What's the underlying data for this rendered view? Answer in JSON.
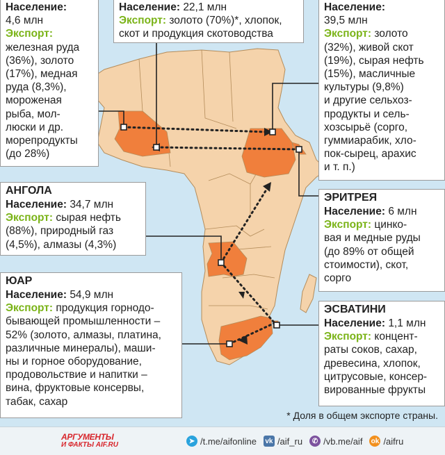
{
  "colors": {
    "ocean": "#cfe6f3",
    "land": "#f5d3ab",
    "border": "#b48c5a",
    "highlight": "#f07f3c",
    "export_label": "#7ab317",
    "route": "#222222"
  },
  "boxes": {
    "top_left": {
      "population_label": "Население:",
      "population_value": "4,6 млн",
      "export_label": "Экспорт:",
      "export_lines": [
        "железная руда",
        "(36%), золото",
        "(17%), медная",
        "руда (8,3%),",
        "мороженая",
        "рыба, мол-",
        "люски и др.",
        "морепродукты",
        "(до 28%)"
      ]
    },
    "top_center": {
      "population_label": "Население:",
      "population_value": "22,1 млн",
      "export_label": "Экспорт:",
      "export_line1": "золото (70%)*, хлопок,",
      "export_line2": "скот и продукция скотоводства"
    },
    "top_right": {
      "population_label": "Население:",
      "population_value": "39,5 млн",
      "export_label": "Экспорт:",
      "export_first": "золото",
      "export_lines": [
        "(32%), живой скот",
        "(19%), сырая нефть",
        "(15%), масличные",
        "культуры (9,8%)",
        "и другие сельхоз-",
        "продукты и сель-",
        "хозсырьё (сорго,",
        "гуммиарабик, хло-",
        "пок-сырец, арахис",
        "и т. п.)"
      ]
    },
    "angola": {
      "title": "АНГОЛА",
      "population_label": "Население:",
      "population_value": "34,7 млн",
      "export_label": "Экспорт:",
      "export_first": "сырая нефть",
      "export_lines": [
        "(88%), природный газ",
        "(4,5%), алмазы (4,3%)"
      ]
    },
    "eritrea": {
      "title": "ЭРИТРЕЯ",
      "population_label": "Население:",
      "population_value": "6 млн",
      "export_label": "Экспорт:",
      "export_first": "цинко-",
      "export_lines": [
        "вая и медные руды",
        "(до 89% от общей",
        "стоимости), скот,",
        "сорго"
      ]
    },
    "sar": {
      "title": "ЮАР",
      "population_label": "Население:",
      "population_value": "54,9 млн",
      "export_label": "Экспорт:",
      "export_first": "продукция горнодо-",
      "export_lines": [
        "бывающей промышленности –",
        "52% (золото, алмазы, платина,",
        "различные минералы), маши-",
        "ны и горное оборудование,",
        "продовольствие и напитки –",
        "вина, фруктовые консервы,",
        "табак, сахар"
      ]
    },
    "eswatini": {
      "title": "ЭСВАТИНИ",
      "population_label": "Население:",
      "population_value": "1,1 млн",
      "export_label": "Экспорт:",
      "export_first": "концент-",
      "export_lines": [
        "раты соков, сахар,",
        "древесина, хлопок,",
        "цитрусовые, консер-",
        "вированные фрукты"
      ]
    }
  },
  "footnote": "* Доля в общем экспорте страны.",
  "footer": {
    "logo_line1": "АРГУМЕНТЫ",
    "logo_line2": "И ФАКТЫ AIF.RU",
    "links": [
      {
        "icon": "telegram-icon",
        "text": "/t.me/aifonline"
      },
      {
        "icon": "vk-icon",
        "text": "/aif_ru"
      },
      {
        "icon": "viber-icon",
        "text": "/vb.me/aif"
      },
      {
        "icon": "ok-icon",
        "text": "/aifru"
      }
    ]
  }
}
